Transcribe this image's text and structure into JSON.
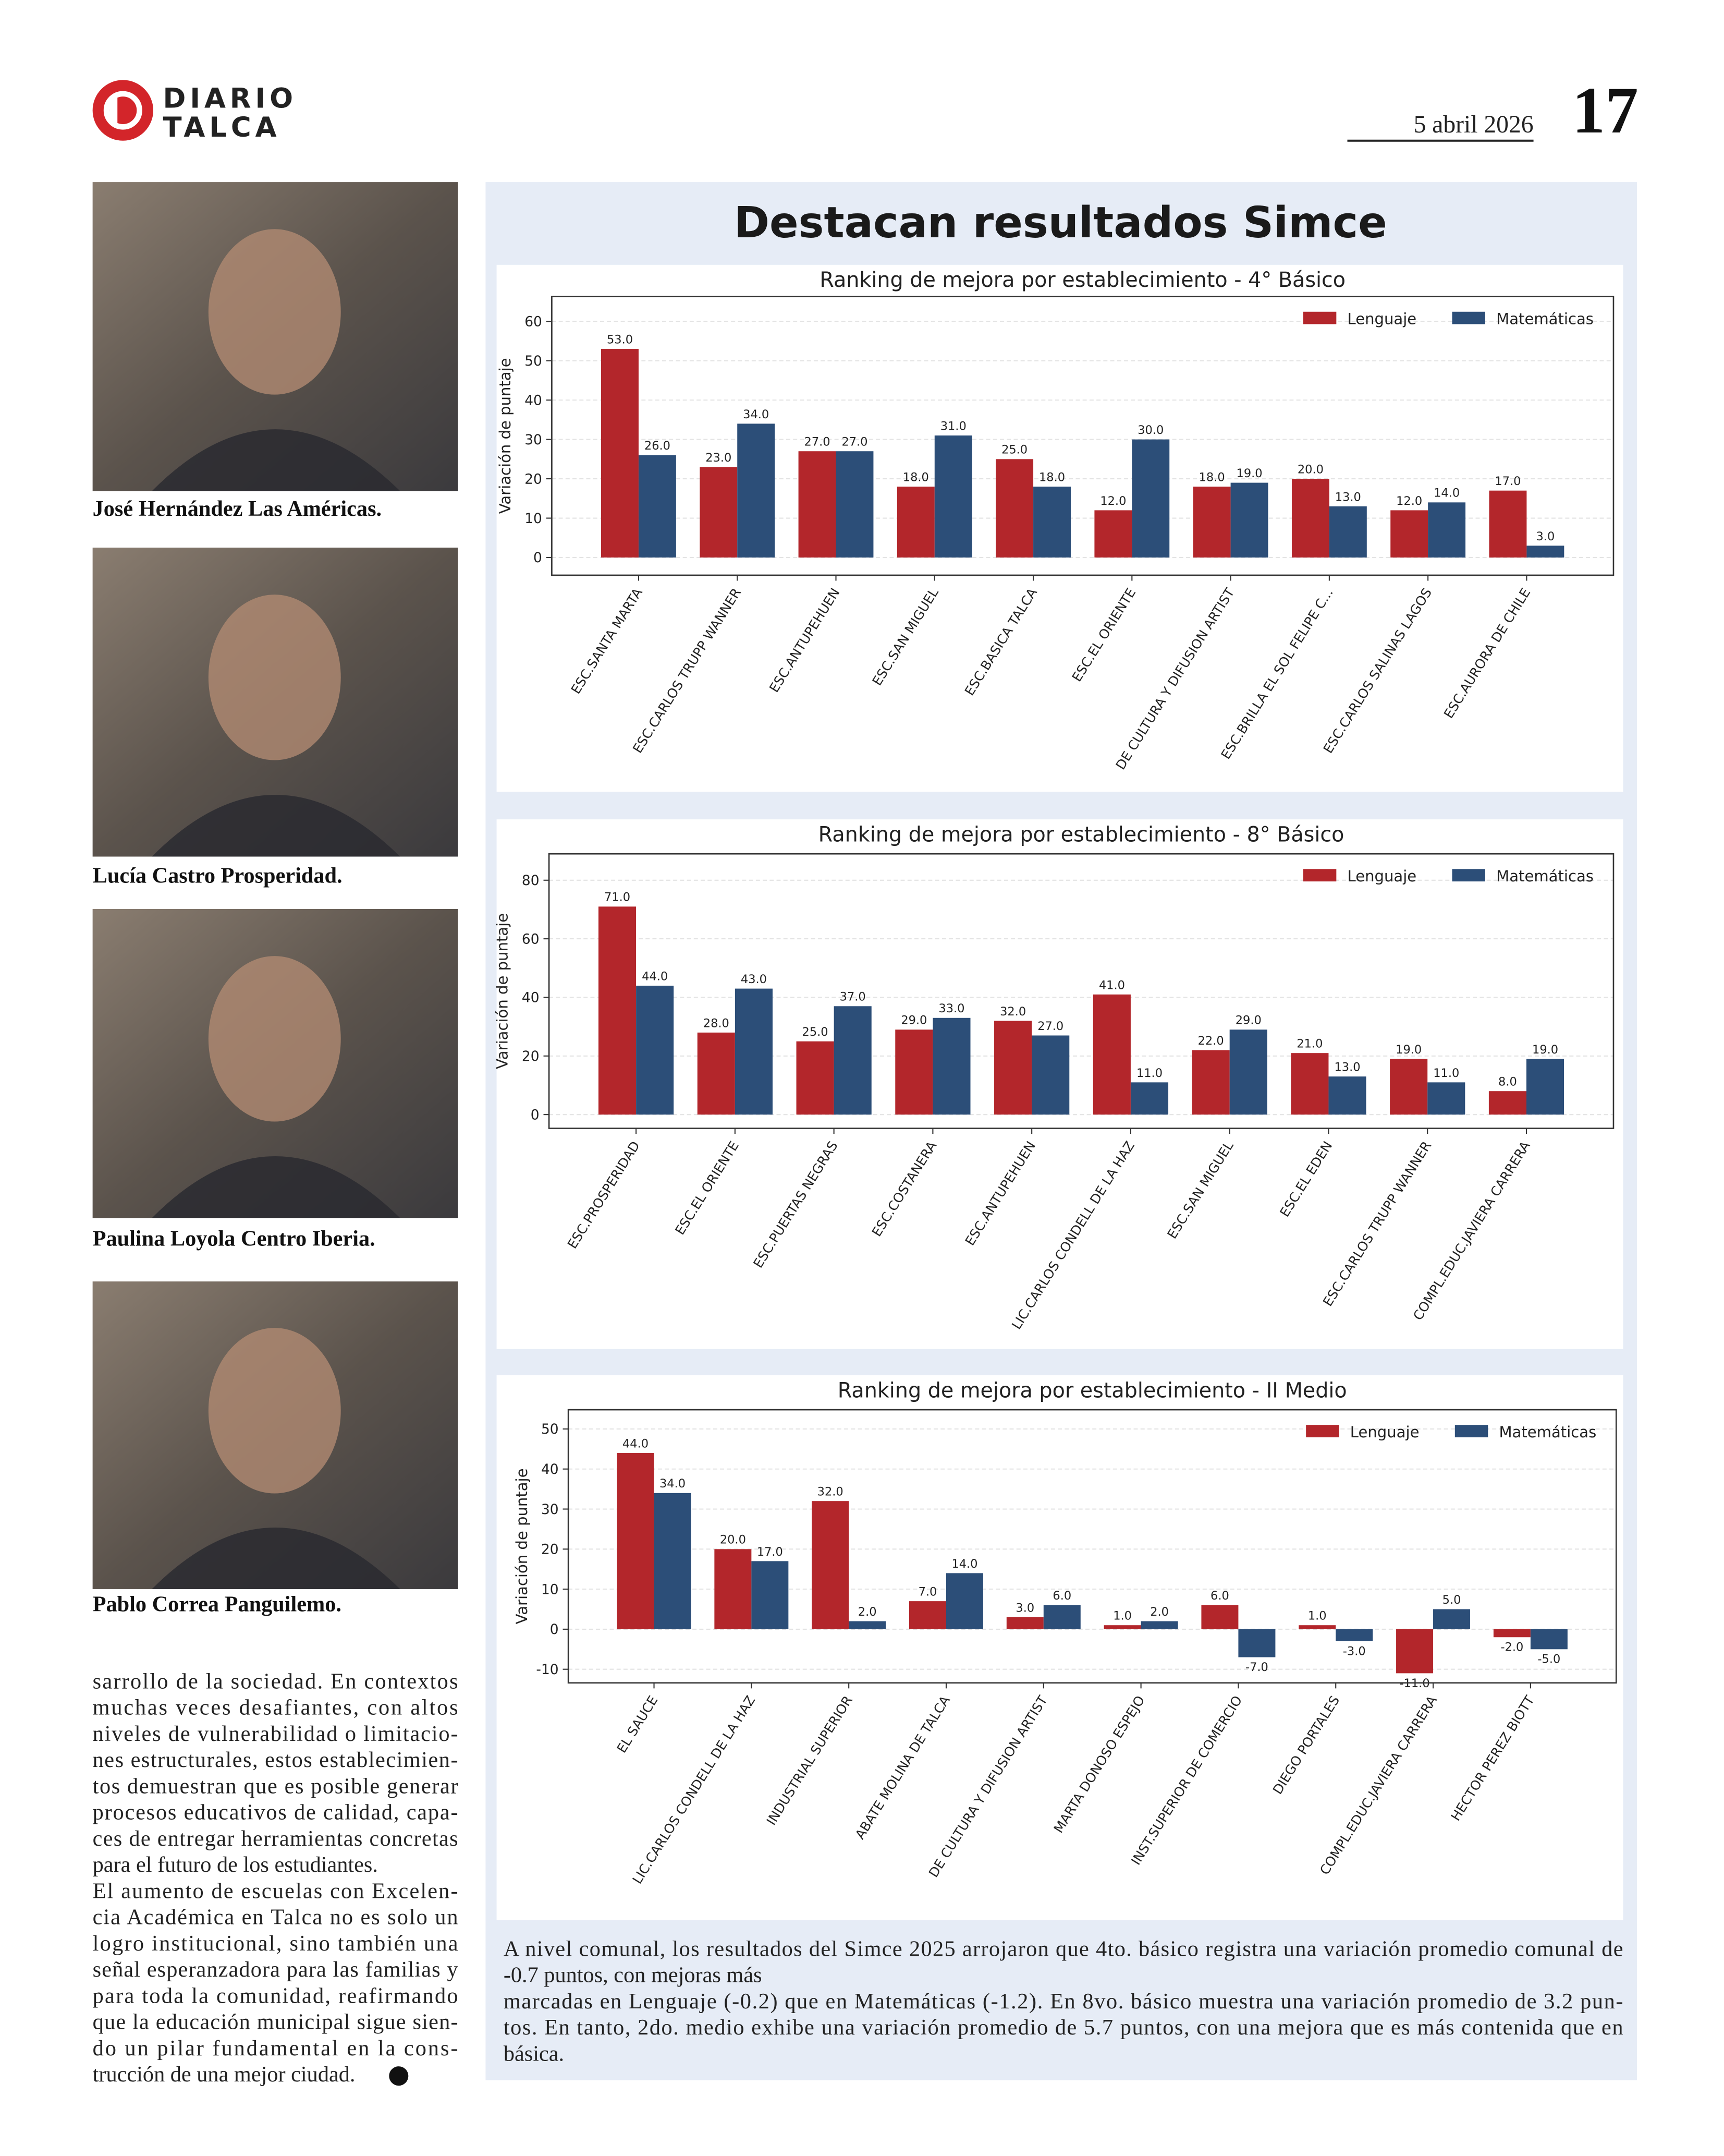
{
  "header": {
    "logo_line1": "DIARIO",
    "logo_line2": "TALCA",
    "date": "5 abril 2026",
    "page": "17"
  },
  "photos": [
    {
      "caption": "José Hernández Las Américas."
    },
    {
      "caption": "Lucía Castro Prosperidad."
    },
    {
      "caption": "Paulina Loyola Centro Iberia."
    },
    {
      "caption": "Pablo Correa Panguilemo."
    }
  ],
  "article": {
    "lines": [
      "sarrollo de la sociedad. En contextos",
      "muchas veces desafiantes, con altos",
      "niveles de vulnerabilidad o limitacio-",
      "nes estructurales, estos establecimien-",
      "tos demuestran que es posible generar",
      "procesos educativos de calidad, capa-",
      "ces de entregar herramientas concretas",
      "para el futuro de los estudiantes.",
      "El aumento de escuelas con Excelen-",
      "cia Académica en Talca no es solo un",
      "logro institucional, sino también una",
      "señal esperanzadora para las familias y",
      "para toda la comunidad, reafirmando",
      "que la educación municipal sigue sien-",
      "do un pilar fundamental en la cons-",
      "trucción de una mejor ciudad."
    ]
  },
  "panel": {
    "title": "Destacan resultados Simce",
    "footer_lines": [
      "A nivel comunal, los resultados del Simce 2025 arrojaron que 4to. básico registra una variación promedio comunal de",
      "-0.7 puntos, con mejoras más",
      "marcadas en Lenguaje (-0.2) que en Matemáticas (-1.2). En 8vo. básico muestra una variación promedio de 3.2 pun-",
      "tos. En tanto,  2do. medio exhibe una variación promedio de 5.7 puntos, con una mejora que es más contenida que en",
      "básica."
    ]
  },
  "chart_data": [
    {
      "type": "bar",
      "title": "Ranking de mejora por establecimiento - 4° Básico",
      "ylabel": "Variación de puntaje",
      "categories": [
        "ESC.SANTA  MARTA",
        "ESC.CARLOS TRUPP WANNER",
        "ESC.ANTUPEHUEN",
        "ESC.SAN MIGUEL",
        "ESC.BASICA TALCA",
        "ESC.EL ORIENTE",
        "DE CULTURA Y DIFUSION ARTIST",
        "ESC.BRILLA EL SOL FELIPE C...",
        "ESC.CARLOS SALINAS LAGOS",
        "ESC.AURORA DE CHILE"
      ],
      "series": [
        {
          "name": "Lenguaje",
          "color": "#b3262b",
          "values": [
            53,
            23,
            27,
            18,
            25,
            12,
            18,
            20,
            12,
            17
          ],
          "value_labels": [
            "53.0",
            "23.0",
            "27.0",
            "18.0",
            "25.0",
            "12.0",
            "18.0",
            "20.0",
            "12.0",
            "17.0"
          ]
        },
        {
          "name": "Matemáticas",
          "color": "#2c4e78",
          "values": [
            26,
            34,
            27,
            31,
            18,
            30,
            19,
            13,
            14,
            3
          ],
          "value_labels": [
            "26.0",
            "34.0",
            "27.0",
            "31.0",
            "18.0",
            "30.0",
            "19.0",
            "13.0",
            "14.0",
            "3.0"
          ]
        }
      ],
      "ylim": [
        -4.5,
        66.3
      ],
      "yticks": [
        0,
        10,
        20,
        30,
        40,
        50,
        60
      ],
      "grid": true,
      "legend": "upper right"
    },
    {
      "type": "bar",
      "title": "Ranking de mejora por establecimiento - 8° Básico",
      "ylabel": "Variación de puntaje",
      "categories": [
        "ESC.PROSPERIDAD",
        "ESC.EL ORIENTE",
        "ESC.PUERTAS NEGRAS",
        "ESC.COSTANERA",
        "ESC.ANTUPEHUEN",
        "LIC.CARLOS CONDELL DE LA HAZ",
        "ESC.SAN MIGUEL",
        "ESC.EL EDEN",
        "ESC.CARLOS TRUPP WANNER",
        "COMPL.EDUC.JAVIERA CARRERA"
      ],
      "series": [
        {
          "name": "Lenguaje",
          "color": "#b3262b",
          "values": [
            71,
            28,
            25,
            29,
            32,
            41,
            22,
            21,
            19,
            8
          ],
          "value_labels": [
            "71.0",
            "28.0",
            "25.0",
            "29.0",
            "32.0",
            "41.0",
            "22.0",
            "21.0",
            "19.0",
            "8.0"
          ]
        },
        {
          "name": "Matemáticas",
          "color": "#2c4e78",
          "values": [
            44,
            43,
            37,
            33,
            27,
            11,
            29,
            13,
            11,
            19
          ],
          "value_labels": [
            "44.0",
            "43.0",
            "37.0",
            "33.0",
            "27.0",
            "11.0",
            "29.0",
            "13.0",
            "11.0",
            "19.0"
          ]
        }
      ],
      "ylim": [
        -4.7,
        89
      ],
      "yticks": [
        0,
        20,
        40,
        60,
        80
      ],
      "grid": true,
      "legend": "upper right"
    },
    {
      "type": "bar",
      "title": "Ranking de mejora por establecimiento - II Medio",
      "ylabel": "Variación de puntaje",
      "categories": [
        "EL SAUCE",
        "LIC.CARLOS CONDELL DE LA HAZ",
        "INDUSTRIAL SUPERIOR",
        "ABATE MOLINA DE TALCA",
        "DE CULTURA Y DIFUSION ARTIST",
        "MARTA DONOSO ESPEJO",
        "INST.SUPERIOR DE COMERCIO",
        "DIEGO PORTALES",
        "COMPL.EDUC.JAVIERA CARRERA",
        "HECTOR PEREZ BIOTT"
      ],
      "series": [
        {
          "name": "Lenguaje",
          "color": "#b3262b",
          "values": [
            44,
            20,
            32,
            7,
            3,
            1,
            6,
            1,
            -11,
            -2
          ],
          "value_labels": [
            "44.0",
            "20.0",
            "32.0",
            "7.0",
            "3.0",
            "1.0",
            "6.0",
            "1.0",
            "-11.0",
            "-2.0"
          ]
        },
        {
          "name": "Matemáticas",
          "color": "#2c4e78",
          "values": [
            34,
            17,
            2,
            14,
            6,
            2,
            -7,
            -3,
            5,
            -5
          ],
          "value_labels": [
            "34.0",
            "17.0",
            "2.0",
            "14.0",
            "6.0",
            "2.0",
            "-7.0",
            "-3.0",
            "5.0",
            "-5.0"
          ]
        }
      ],
      "ylim": [
        -13.4,
        54.8
      ],
      "yticks": [
        -10,
        0,
        10,
        20,
        30,
        40,
        50
      ],
      "grid": true,
      "legend": "upper right"
    }
  ]
}
